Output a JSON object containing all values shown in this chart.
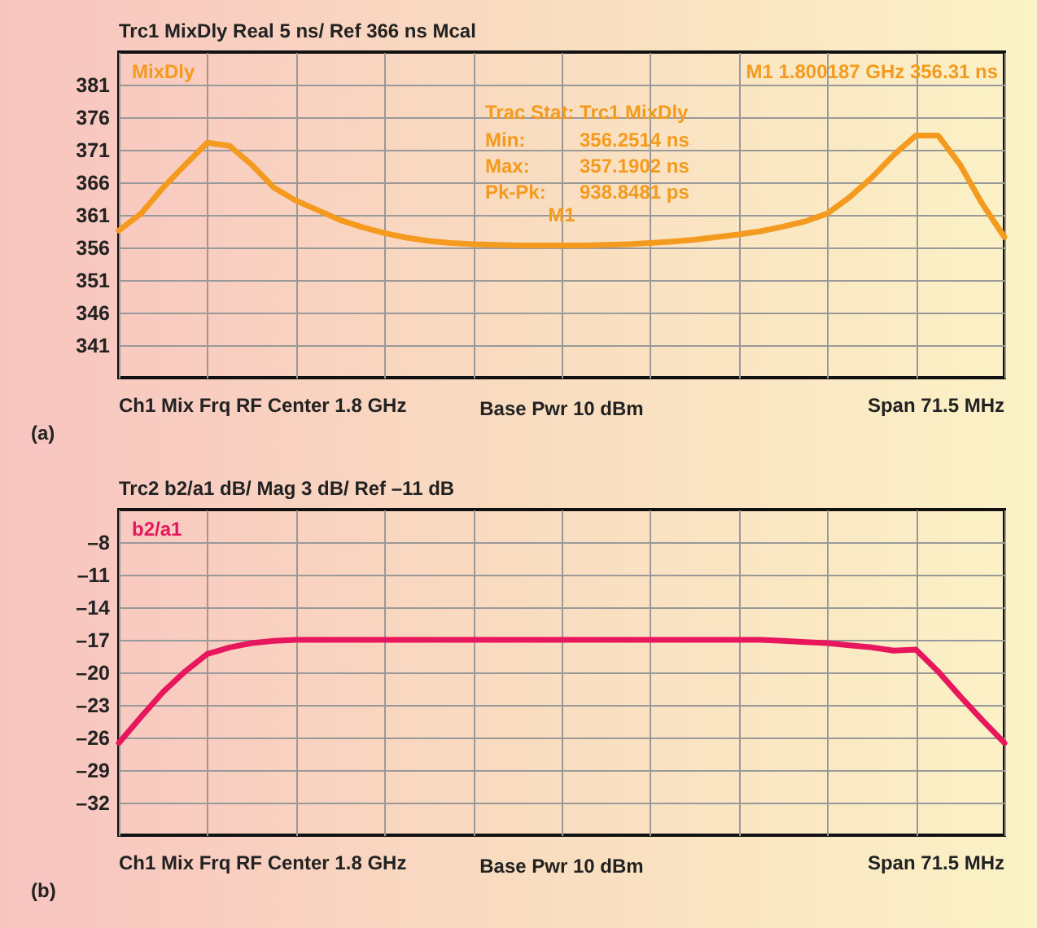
{
  "chart_data": [
    {
      "type": "line",
      "title": "Trc1 MixDly Real 5 ns/ Ref 366 ns Mcal",
      "categories": [
        null,
        null,
        null,
        null,
        null,
        null,
        null,
        null,
        null,
        null,
        null,
        null,
        null,
        null,
        null,
        null,
        null,
        null,
        null,
        null,
        null,
        null,
        null,
        null,
        null,
        null,
        null,
        null,
        null,
        null,
        null,
        null,
        null,
        null,
        null,
        null,
        null,
        null,
        null,
        null,
        null
      ],
      "series": [
        {
          "name": "MixDly",
          "color": "#f39a1f",
          "values": [
            358.6,
            361.2,
            365.2,
            368.7,
            372.1,
            371.6,
            368.7,
            365.2,
            363.2,
            361.7,
            360.2,
            359.1,
            358.2,
            357.5,
            357.0,
            356.7,
            356.5,
            356.4,
            356.3,
            356.3,
            356.3,
            356.3,
            356.4,
            356.5,
            356.7,
            356.9,
            357.2,
            357.6,
            358.0,
            358.5,
            359.2,
            360.0,
            361.2,
            363.7,
            366.7,
            370.2,
            373.2,
            373.2,
            368.7,
            362.7,
            357.6
          ]
        }
      ],
      "ylim": [
        336,
        386
      ],
      "yticks": [
        341,
        346,
        351,
        356,
        361,
        366,
        371,
        376,
        381
      ],
      "grid": true,
      "legend": "top left",
      "annotations": [
        "M1 1.800187 GHz 356.31 ns",
        "Trac Stat: Trc1 MixDly",
        "Min:",
        "356.2514 ns",
        "Max:",
        "357.1902 ns",
        "Pk-Pk:",
        "938.8481 ps",
        {
          "text": "M1",
          "y": 356.31
        },
        "Ch1 Mix Frq RF Center 1.8 GHz",
        "Base Pwr 10 dBm",
        "Span 71.5 MHz",
        "(a)"
      ]
    },
    {
      "type": "line",
      "title": "Trc2 b2/a1 dB/ Mag 3 dB/ Ref –11 dB",
      "categories": [
        null,
        null,
        null,
        null,
        null,
        null,
        null,
        null,
        null,
        null,
        null,
        null,
        null,
        null,
        null,
        null,
        null,
        null,
        null,
        null,
        null,
        null,
        null,
        null,
        null,
        null,
        null,
        null,
        null,
        null,
        null,
        null,
        null,
        null,
        null,
        null,
        null,
        null,
        null,
        null,
        null
      ],
      "series": [
        {
          "name": "b2/a1",
          "color": "#e8175d",
          "values": [
            -26.5,
            -24.1,
            -21.8,
            -19.9,
            -18.3,
            -17.7,
            -17.3,
            -17.1,
            -17.0,
            -17.0,
            -17.0,
            -17.0,
            -17.0,
            -17.0,
            -17.0,
            -17.0,
            -17.0,
            -17.0,
            -17.0,
            -17.0,
            -17.0,
            -17.0,
            -17.0,
            -17.0,
            -17.0,
            -17.0,
            -17.0,
            -17.0,
            -17.0,
            -17.0,
            -17.1,
            -17.2,
            -17.3,
            -17.5,
            -17.7,
            -18.0,
            -17.9,
            -19.9,
            -22.2,
            -24.4,
            -26.5
          ]
        }
      ],
      "ylim": [
        -35,
        -5
      ],
      "yticks": [
        {
          "value": -8,
          "label": "–8"
        },
        {
          "value": -11,
          "label": "–11"
        },
        {
          "value": -14,
          "label": "–14"
        },
        {
          "value": -17,
          "label": "–17"
        },
        {
          "value": -20,
          "label": "–20"
        },
        {
          "value": -23,
          "label": "–23"
        },
        {
          "value": -26,
          "label": "–26"
        },
        {
          "value": -29,
          "label": "–29"
        },
        {
          "value": -32,
          "label": "–32"
        }
      ],
      "grid": true,
      "legend": "top left",
      "annotations": [
        "Ch1 Mix Frq RF Center 1.8 GHz",
        "Base Pwr 10 dBm",
        "Span 71.5 MHz",
        "(b)"
      ]
    }
  ]
}
